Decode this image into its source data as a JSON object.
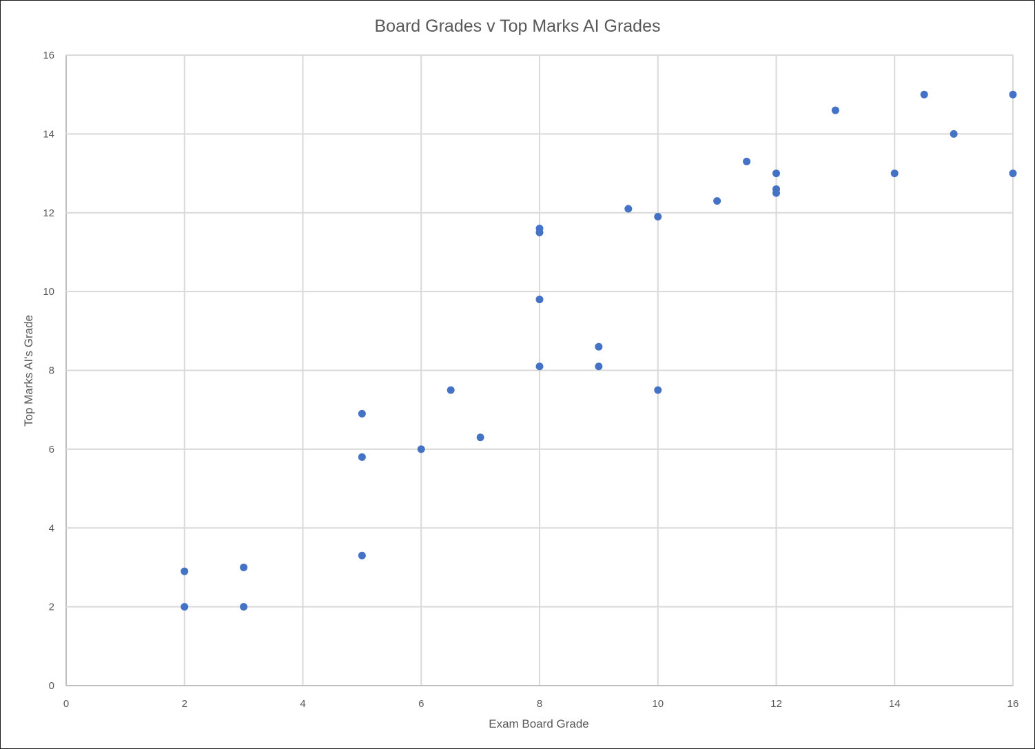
{
  "chart_data": {
    "type": "scatter",
    "title": "Board Grades v Top Marks AI Grades",
    "xlabel": "Exam Board Grade",
    "ylabel": "Top Marks AI's Grade",
    "xlim": [
      0,
      16
    ],
    "ylim": [
      0,
      16
    ],
    "xticks": [
      "0",
      "2",
      "4",
      "6",
      "8",
      "10",
      "12",
      "14",
      "16"
    ],
    "yticks": [
      "0",
      "2",
      "4",
      "6",
      "8",
      "10",
      "12",
      "14",
      "16"
    ],
    "grid": true,
    "legend": "none",
    "marker_color": "#4472C4",
    "series": [
      {
        "points": [
          [
            2,
            2.9
          ],
          [
            2,
            2.0
          ],
          [
            3,
            3.0
          ],
          [
            3,
            2.0
          ],
          [
            5,
            3.3
          ],
          [
            5,
            5.8
          ],
          [
            5,
            6.9
          ],
          [
            6,
            6.0
          ],
          [
            6.5,
            7.5
          ],
          [
            7,
            6.3
          ],
          [
            8,
            8.1
          ],
          [
            8,
            9.8
          ],
          [
            8,
            11.5
          ],
          [
            8,
            11.6
          ],
          [
            9,
            8.6
          ],
          [
            9,
            8.1
          ],
          [
            9.5,
            12.1
          ],
          [
            10,
            11.9
          ],
          [
            10,
            7.5
          ],
          [
            11,
            12.3
          ],
          [
            11.5,
            13.3
          ],
          [
            12,
            13.0
          ],
          [
            12,
            12.6
          ],
          [
            12,
            12.5
          ],
          [
            13,
            14.6
          ],
          [
            14,
            13.0
          ],
          [
            14.5,
            15.0
          ],
          [
            15,
            14.0
          ],
          [
            16,
            15.0
          ],
          [
            16,
            13.0
          ]
        ]
      }
    ]
  }
}
